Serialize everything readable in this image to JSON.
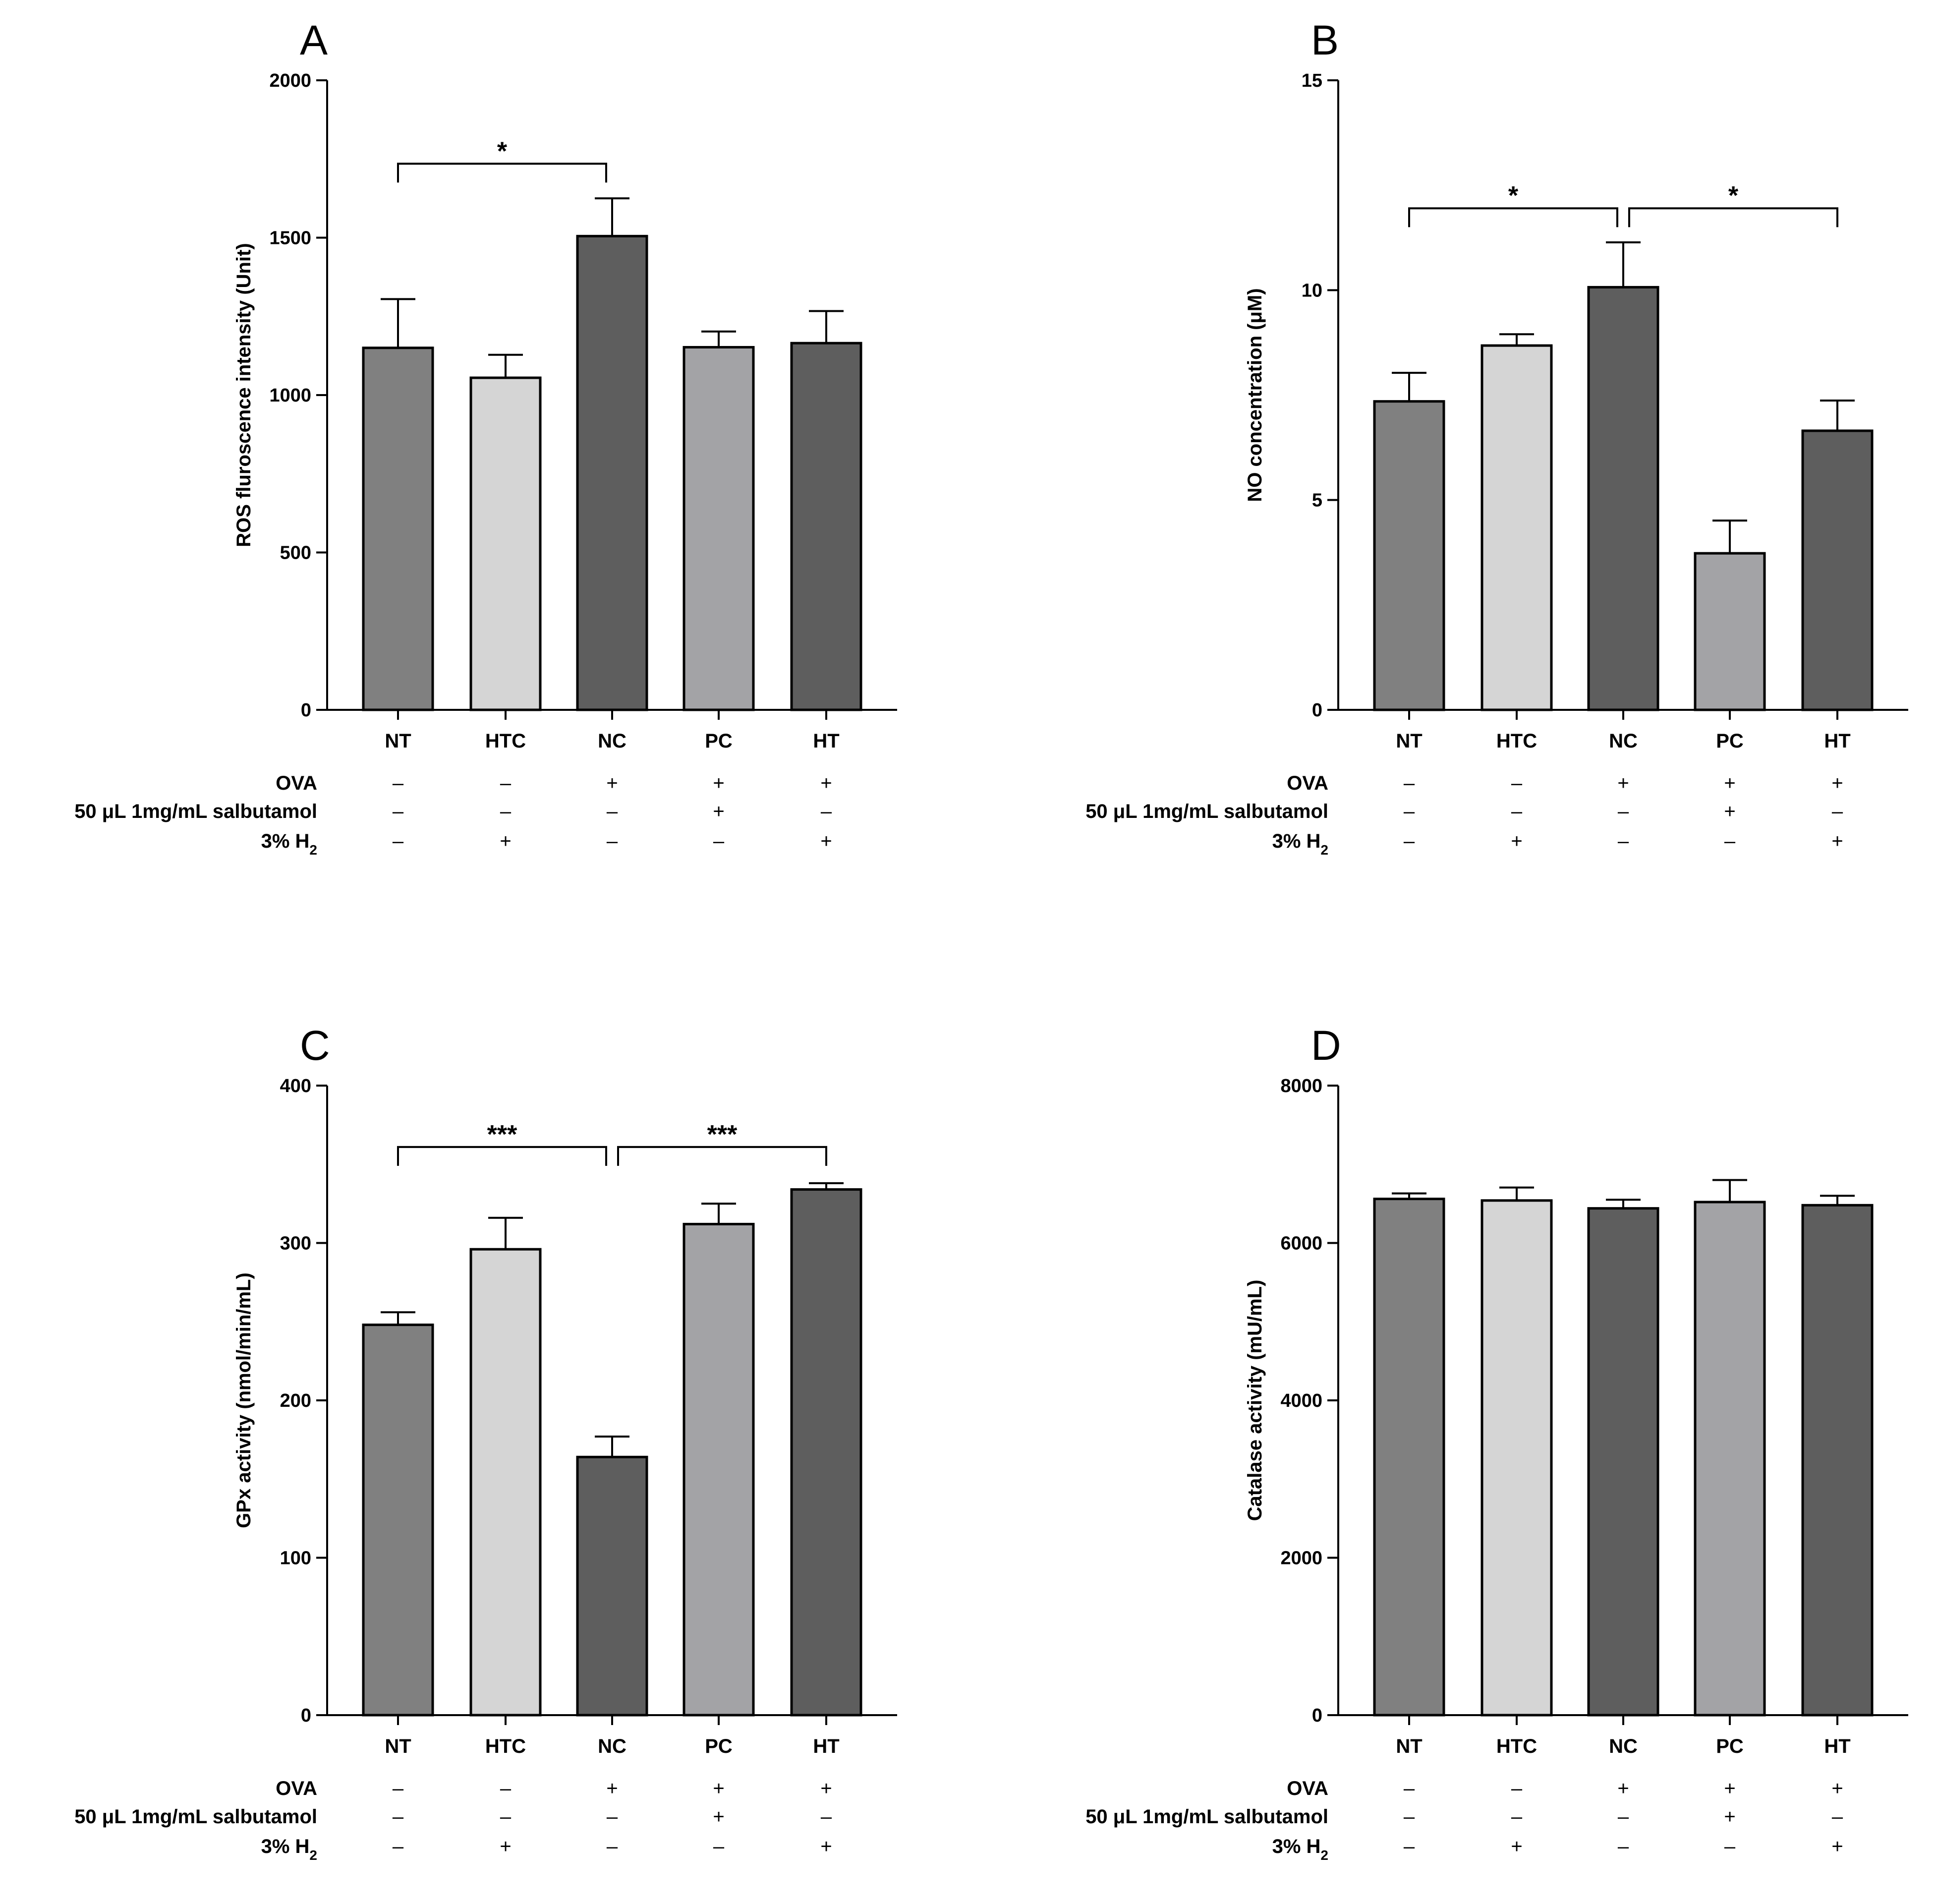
{
  "chart_data": [
    {
      "panel": "A",
      "type": "bar",
      "ylabel": "ROS fluroscence intensity (Unit)",
      "ylim": [
        0,
        2000
      ],
      "yticks": [
        "0",
        "500",
        "1000",
        "1500",
        "2000"
      ],
      "categories": [
        "NT",
        "HTC",
        "NC",
        "PC",
        "HT"
      ],
      "values": [
        1150,
        1055,
        1505,
        1152,
        1165
      ],
      "errors": [
        155,
        73,
        120,
        50,
        102
      ],
      "colors": [
        "#808080",
        "#d5d5d5",
        "#5e5e5e",
        "#a3a3a6",
        "#5e5e5e"
      ],
      "significance": [
        {
          "from": "NT",
          "to": "NC",
          "label": "*",
          "y": 1735
        }
      ]
    },
    {
      "panel": "B",
      "type": "bar",
      "ylabel": "NO concentration (μM)",
      "ylim": [
        0,
        15
      ],
      "yticks": [
        "0",
        "5",
        "10",
        "15"
      ],
      "categories": [
        "NT",
        "HTC",
        "NC",
        "PC",
        "HT"
      ],
      "values": [
        7.35,
        8.68,
        10.07,
        3.73,
        6.65
      ],
      "errors": [
        0.68,
        0.27,
        1.07,
        0.78,
        0.72
      ],
      "colors": [
        "#808080",
        "#d5d5d5",
        "#5e5e5e",
        "#a3a3a6",
        "#5e5e5e"
      ],
      "significance": [
        {
          "from": "NT",
          "to": "NC",
          "label": "*",
          "y": 11.95
        },
        {
          "from": "NC",
          "to": "HT",
          "label": "*",
          "y": 11.95
        }
      ]
    },
    {
      "panel": "C",
      "type": "bar",
      "ylabel": "GPx activity (nmol/min/mL)",
      "ylim": [
        0,
        400
      ],
      "yticks": [
        "0",
        "100",
        "200",
        "300",
        "400"
      ],
      "categories": [
        "NT",
        "HTC",
        "NC",
        "PC",
        "HT"
      ],
      "values": [
        248,
        296,
        164,
        312,
        334
      ],
      "errors": [
        8,
        20,
        13,
        13,
        4
      ],
      "colors": [
        "#808080",
        "#d5d5d5",
        "#5e5e5e",
        "#a3a3a6",
        "#5e5e5e"
      ],
      "significance": [
        {
          "from": "NT",
          "to": "NC",
          "label": "***",
          "y": 361
        },
        {
          "from": "NC",
          "to": "HT",
          "label": "***",
          "y": 361
        }
      ]
    },
    {
      "panel": "D",
      "type": "bar",
      "ylabel": "Catalase activity (mU/mL)",
      "ylim": [
        0,
        8000
      ],
      "yticks": [
        "0",
        "2000",
        "4000",
        "6000",
        "8000"
      ],
      "categories": [
        "NT",
        "HTC",
        "NC",
        "PC",
        "HT"
      ],
      "values": [
        6560,
        6540,
        6440,
        6520,
        6480
      ],
      "errors": [
        70,
        165,
        110,
        280,
        120
      ],
      "colors": [
        "#808080",
        "#d5d5d5",
        "#5e5e5e",
        "#a3a3a6",
        "#5e5e5e"
      ],
      "significance": []
    }
  ],
  "conditions": {
    "rows": [
      {
        "label": "OVA",
        "signs": [
          "–",
          "–",
          "+",
          "+",
          "+"
        ]
      },
      {
        "label": "50 μL 1mg/mL salbutamol",
        "signs": [
          "–",
          "–",
          "–",
          "+",
          "–"
        ]
      },
      {
        "label": "3% H",
        "subscript": "2",
        "signs": [
          "–",
          "+",
          "–",
          "–",
          "+"
        ]
      }
    ]
  }
}
